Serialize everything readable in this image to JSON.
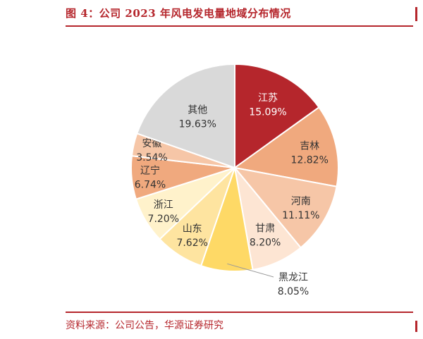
{
  "header": {
    "title": "图 4：公司 2023 年风电发电量地域分布情况"
  },
  "footer": {
    "source": "资料来源：公司公告，华源证券研究"
  },
  "chart_data": {
    "type": "pie",
    "title": "图 4：公司 2023 年风电发电量地域分布情况",
    "categories": [
      "江苏",
      "吉林",
      "河南",
      "甘肃",
      "黑龙江",
      "山东",
      "浙江",
      "辽宁",
      "安徽",
      "其他"
    ],
    "values": [
      15.09,
      12.82,
      11.11,
      8.2,
      8.05,
      7.62,
      7.2,
      6.74,
      3.54,
      19.63
    ],
    "value_labels": [
      "15.09%",
      "12.82%",
      "11.11%",
      "8.20%",
      "8.05%",
      "7.62%",
      "7.20%",
      "6.74%",
      "3.54%",
      "19.63%"
    ],
    "colors": [
      "#b5262c",
      "#f0a97e",
      "#f6c6a7",
      "#fde5d3",
      "#fed966",
      "#fee4a0",
      "#fff2cb",
      "#f0a97e",
      "#f6c6a7",
      "#d9d9d9"
    ],
    "label_colors": [
      "#ffffff",
      "#333333",
      "#333333",
      "#333333",
      "#333333",
      "#333333",
      "#333333",
      "#333333",
      "#333333",
      "#333333"
    ],
    "start_angle_deg": 0,
    "direction": "clockwise",
    "legend": "none"
  }
}
